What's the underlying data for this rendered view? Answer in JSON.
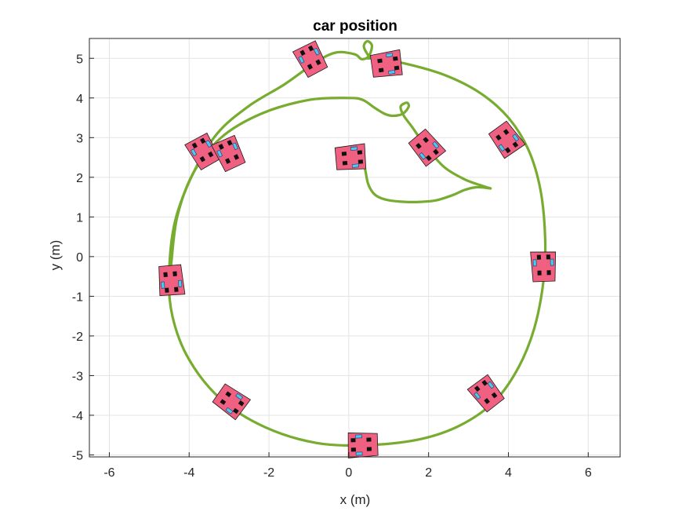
{
  "chart_data": {
    "type": "line",
    "title": "car position",
    "xlabel": "x (m)",
    "ylabel": "y (m)",
    "xlim": [
      -6.5,
      6.8
    ],
    "ylim": [
      -5.05,
      5.5
    ],
    "xticks": [
      -6,
      -4,
      -2,
      0,
      2,
      4,
      6
    ],
    "yticks": [
      -5,
      -4,
      -3,
      -2,
      -1,
      0,
      1,
      2,
      3,
      4,
      5
    ],
    "grid": true,
    "line_color": "#77ac30",
    "car_body_color": "#f06080",
    "series": [
      {
        "values": [
          [
            3.55,
            1.72
          ],
          [
            3.2,
            1.75
          ],
          [
            2.9,
            1.68
          ],
          [
            2.6,
            1.55
          ],
          [
            2.2,
            1.42
          ],
          [
            1.8,
            1.38
          ],
          [
            1.4,
            1.38
          ],
          [
            1.0,
            1.42
          ],
          [
            0.75,
            1.5
          ],
          [
            0.6,
            1.62
          ],
          [
            0.48,
            1.85
          ],
          [
            0.42,
            2.15
          ],
          [
            0.36,
            2.45
          ],
          [
            0.25,
            2.66
          ],
          [
            0.12,
            2.72
          ],
          [
            0.02,
            2.62
          ],
          [
            -0.08,
            2.5
          ]
        ]
      },
      {
        "values": [
          [
            0.45,
            5.0
          ],
          [
            0.7,
            4.98
          ],
          [
            1.4,
            4.87
          ],
          [
            2.4,
            4.58
          ],
          [
            3.3,
            4.12
          ],
          [
            4.0,
            3.5
          ],
          [
            4.5,
            2.7
          ],
          [
            4.8,
            1.7
          ],
          [
            4.92,
            0.5
          ],
          [
            4.88,
            -0.6
          ],
          [
            4.65,
            -1.8
          ],
          [
            4.25,
            -2.8
          ],
          [
            3.65,
            -3.65
          ],
          [
            2.8,
            -4.25
          ],
          [
            1.8,
            -4.6
          ],
          [
            0.5,
            -4.75
          ],
          [
            -0.8,
            -4.7
          ],
          [
            -2.1,
            -4.3
          ],
          [
            -3.2,
            -3.6
          ],
          [
            -4.0,
            -2.6
          ],
          [
            -4.42,
            -1.5
          ],
          [
            -4.5,
            -0.4
          ],
          [
            -4.35,
            0.9
          ],
          [
            -3.9,
            2.1
          ],
          [
            -3.3,
            3.1
          ],
          [
            -2.5,
            3.8
          ],
          [
            -1.6,
            4.35
          ],
          [
            -0.8,
            4.92
          ],
          [
            -0.3,
            5.15
          ],
          [
            0.15,
            5.1
          ],
          [
            0.32,
            4.98
          ],
          [
            0.5,
            5.05
          ],
          [
            0.58,
            5.32
          ],
          [
            0.46,
            5.43
          ],
          [
            0.38,
            5.28
          ],
          [
            0.55,
            5.0
          ],
          [
            0.7,
            4.98
          ]
        ]
      },
      {
        "values": [
          [
            -4.45,
            -0.2
          ],
          [
            -4.3,
            1.0
          ],
          [
            -3.9,
            2.1
          ],
          [
            -3.2,
            3.0
          ],
          [
            -2.2,
            3.6
          ],
          [
            -1.0,
            3.95
          ],
          [
            0.0,
            4.0
          ],
          [
            0.35,
            3.95
          ],
          [
            0.65,
            3.75
          ],
          [
            0.9,
            3.6
          ],
          [
            1.1,
            3.55
          ],
          [
            1.35,
            3.6
          ],
          [
            1.5,
            3.78
          ],
          [
            1.45,
            3.88
          ],
          [
            1.3,
            3.78
          ],
          [
            1.38,
            3.55
          ],
          [
            1.6,
            3.25
          ],
          [
            1.95,
            2.75
          ],
          [
            2.4,
            2.25
          ],
          [
            2.9,
            1.95
          ],
          [
            3.3,
            1.8
          ],
          [
            3.55,
            1.72
          ]
        ]
      }
    ],
    "cars": [
      {
        "x": -0.95,
        "y": 4.98,
        "heading": 118
      },
      {
        "x": 0.95,
        "y": 4.85,
        "heading": 8
      },
      {
        "x": 3.95,
        "y": 2.95,
        "heading": -54
      },
      {
        "x": 1.95,
        "y": 2.75,
        "heading": -50
      },
      {
        "x": 0.05,
        "y": 2.5,
        "heading": 5
      },
      {
        "x": -3.65,
        "y": 2.65,
        "heading": 120
      },
      {
        "x": -3.0,
        "y": 2.6,
        "heading": 115
      },
      {
        "x": 4.88,
        "y": -0.25,
        "heading": 92
      },
      {
        "x": -4.45,
        "y": -0.6,
        "heading": -85
      },
      {
        "x": 3.45,
        "y": -3.45,
        "heading": 128
      },
      {
        "x": -2.95,
        "y": -3.65,
        "heading": -35
      },
      {
        "x": 0.35,
        "y": -4.75,
        "heading": 182
      }
    ]
  }
}
